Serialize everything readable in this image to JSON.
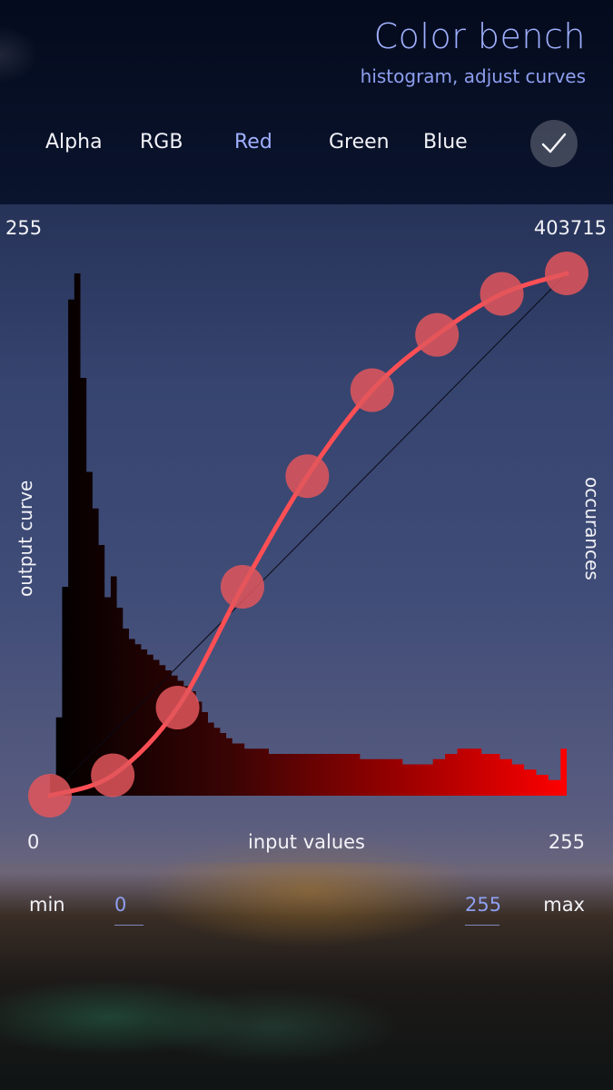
{
  "header": {
    "title": "Color bench",
    "subtitle": "histogram, adjust curves"
  },
  "tabs": [
    {
      "label": "Alpha",
      "active": false
    },
    {
      "label": "RGB",
      "active": false
    },
    {
      "label": "Red",
      "active": true
    },
    {
      "label": "Green",
      "active": false
    },
    {
      "label": "Blue",
      "active": false
    }
  ],
  "accept_icon": "checkmark-icon",
  "chart": {
    "top_left": "255",
    "top_right": "403715",
    "bottom_left": "0",
    "bottom_right": "255",
    "xlabel": "input values",
    "ylabel_left": "output curve",
    "ylabel_right": "occurances",
    "curve_color": "#ff4f55",
    "point_color": "#e2565c"
  },
  "chart_data": {
    "type": "line",
    "xlim": [
      0,
      255
    ],
    "ylim": [
      0,
      255
    ],
    "curve_points": [
      {
        "x": 0,
        "y": 0
      },
      {
        "x": 31,
        "y": 10
      },
      {
        "x": 63,
        "y": 43
      },
      {
        "x": 95,
        "y": 102
      },
      {
        "x": 127,
        "y": 156
      },
      {
        "x": 159,
        "y": 198
      },
      {
        "x": 191,
        "y": 225
      },
      {
        "x": 223,
        "y": 245
      },
      {
        "x": 255,
        "y": 255
      }
    ],
    "histogram": [
      4,
      15,
      40,
      95,
      100,
      80,
      62,
      55,
      48,
      38,
      42,
      36,
      32,
      30,
      29,
      28,
      27,
      26,
      25,
      24,
      23,
      22,
      21,
      20,
      18,
      16,
      14,
      13,
      12,
      11,
      10,
      10,
      9,
      9,
      9,
      9,
      8,
      8,
      8,
      8,
      8,
      8,
      8,
      8,
      8,
      8,
      8,
      8,
      8,
      8,
      8,
      7,
      7,
      7,
      7,
      7,
      7,
      7,
      6,
      6,
      6,
      6,
      6,
      7,
      7,
      8,
      8,
      9,
      9,
      9,
      9,
      8,
      8,
      8,
      7,
      7,
      6,
      6,
      5,
      5,
      4,
      4,
      3,
      3,
      9
    ]
  },
  "range": {
    "min_label": "min",
    "min_value": "0",
    "max_value": "255",
    "max_label": "max"
  }
}
